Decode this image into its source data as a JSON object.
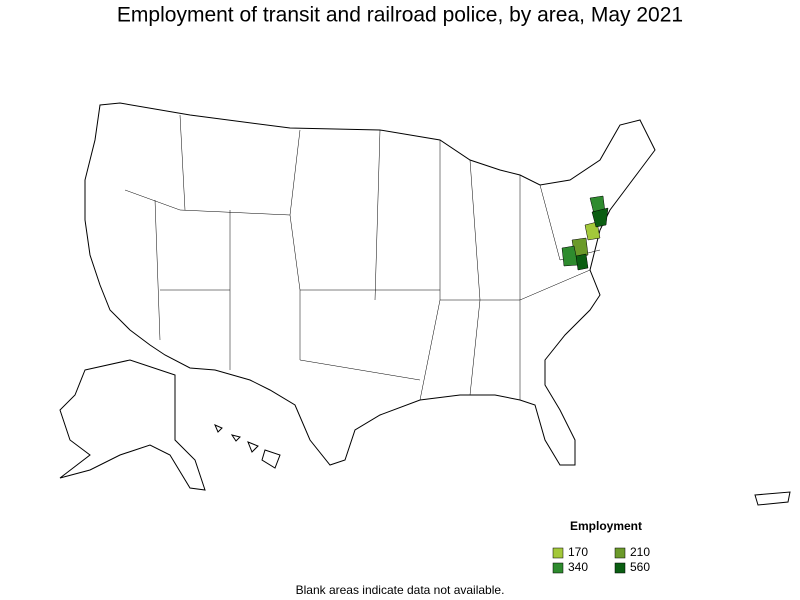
{
  "title": "Employment of transit and railroad police, by area, May 2021",
  "legend": {
    "title": "Employment",
    "items": [
      {
        "label": "170",
        "color": "#a3c83a"
      },
      {
        "label": "210",
        "color": "#6b9a2a"
      },
      {
        "label": "340",
        "color": "#2e8b2e"
      },
      {
        "label": "560",
        "color": "#0b5e12"
      }
    ]
  },
  "footnote": "Blank areas indicate data not available."
}
